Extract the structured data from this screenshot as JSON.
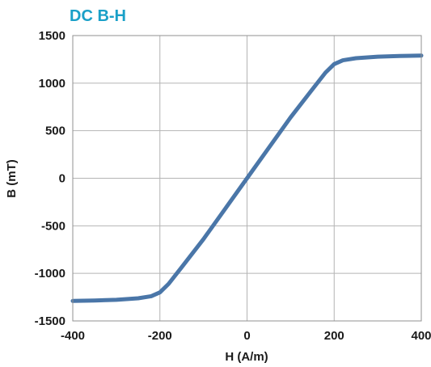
{
  "chart_data": {
    "type": "line",
    "title": "DC B-H",
    "xlabel": "H (A/m)",
    "ylabel": "B (mT)",
    "xlim": [
      -400,
      400
    ],
    "ylim": [
      -1500,
      1500
    ],
    "xticks": [
      -400,
      -200,
      0,
      200,
      400
    ],
    "yticks": [
      -1500,
      -1000,
      -500,
      0,
      500,
      1000,
      1500
    ],
    "grid": true,
    "series": [
      {
        "color": "#4a76a8",
        "x": [
          -400,
          -350,
          -300,
          -250,
          -220,
          -200,
          -180,
          -150,
          -100,
          -50,
          0,
          50,
          100,
          150,
          180,
          200,
          220,
          250,
          300,
          350,
          400
        ],
        "y": [
          -1290,
          -1285,
          -1278,
          -1262,
          -1240,
          -1200,
          -1110,
          -935,
          -640,
          -320,
          0,
          320,
          640,
          935,
          1110,
          1200,
          1240,
          1262,
          1278,
          1285,
          1290
        ]
      }
    ]
  },
  "colors": {
    "title": "#1aa0c8",
    "grid": "#b4b4b4",
    "frame": "#909090",
    "line": "#4a76a8"
  }
}
